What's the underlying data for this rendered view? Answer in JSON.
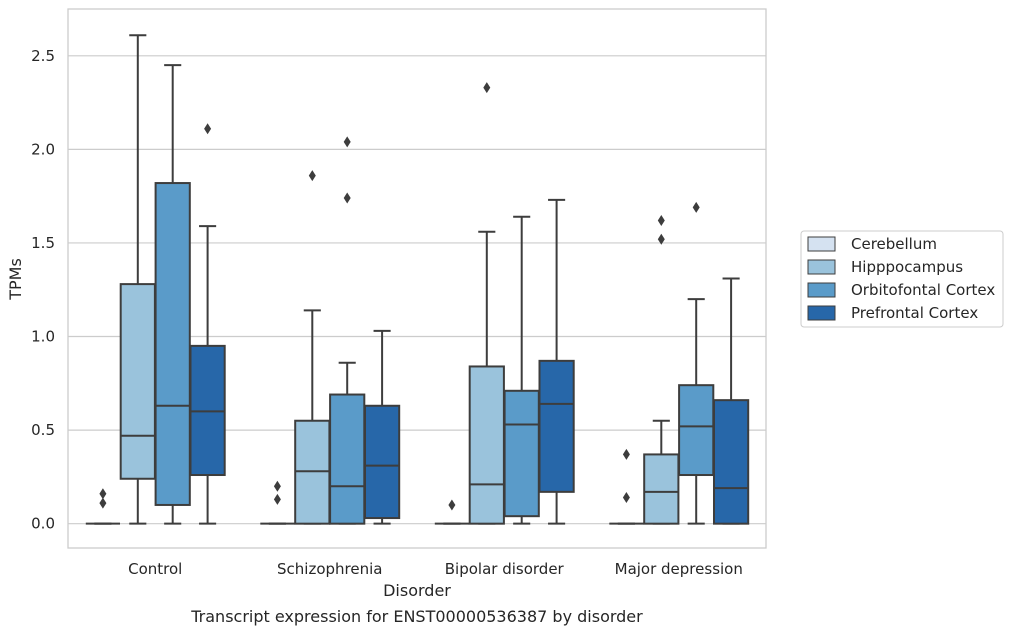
{
  "chart_data": {
    "type": "box",
    "xlabel": "Disorder",
    "ylabel": "TPMs",
    "caption": "Transcript expression for ENST00000536387 by disorder",
    "ylim": [
      -0.13,
      2.75
    ],
    "yticks": [
      0.0,
      0.5,
      1.0,
      1.5,
      2.0,
      2.5
    ],
    "ytick_labels": [
      "0.0",
      "0.5",
      "1.0",
      "1.5",
      "2.0",
      "2.5"
    ],
    "grid": "horizontal",
    "legend_position": "right",
    "categories": [
      "Control",
      "Schizophrenia",
      "Bipolar disorder",
      "Major depression"
    ],
    "series": [
      {
        "name": "Cerebellum",
        "color": "#d5e2f1",
        "boxes": [
          {
            "whislo": 0.0,
            "q1": 0.0,
            "med": 0.0,
            "q3": 0.0,
            "whishi": 0.0,
            "fliers": [
              0.11,
              0.16
            ]
          },
          {
            "whislo": 0.0,
            "q1": 0.0,
            "med": 0.0,
            "q3": 0.0,
            "whishi": 0.0,
            "fliers": [
              0.13,
              0.2
            ]
          },
          {
            "whislo": 0.0,
            "q1": 0.0,
            "med": 0.0,
            "q3": 0.0,
            "whishi": 0.0,
            "fliers": [
              0.1
            ]
          },
          {
            "whislo": 0.0,
            "q1": 0.0,
            "med": 0.0,
            "q3": 0.0,
            "whishi": 0.0,
            "fliers": [
              0.14,
              0.37
            ]
          }
        ]
      },
      {
        "name": "Hipppocampus",
        "color": "#9ac3dc",
        "boxes": [
          {
            "whislo": 0.0,
            "q1": 0.24,
            "med": 0.47,
            "q3": 1.28,
            "whishi": 2.61,
            "fliers": []
          },
          {
            "whislo": 0.0,
            "q1": 0.0,
            "med": 0.28,
            "q3": 0.55,
            "whishi": 1.14,
            "fliers": [
              1.86
            ]
          },
          {
            "whislo": 0.0,
            "q1": 0.0,
            "med": 0.21,
            "q3": 0.84,
            "whishi": 1.56,
            "fliers": [
              2.33
            ]
          },
          {
            "whislo": 0.0,
            "q1": 0.0,
            "med": 0.17,
            "q3": 0.37,
            "whishi": 0.55,
            "fliers": [
              1.52,
              1.62
            ]
          }
        ]
      },
      {
        "name": "Orbitofontal Cortex",
        "color": "#5a9bc9",
        "boxes": [
          {
            "whislo": 0.0,
            "q1": 0.1,
            "med": 0.63,
            "q3": 1.82,
            "whishi": 2.45,
            "fliers": []
          },
          {
            "whislo": 0.0,
            "q1": 0.0,
            "med": 0.2,
            "q3": 0.69,
            "whishi": 0.86,
            "fliers": [
              1.74,
              2.04
            ]
          },
          {
            "whislo": 0.0,
            "q1": 0.04,
            "med": 0.53,
            "q3": 0.71,
            "whishi": 1.64,
            "fliers": []
          },
          {
            "whislo": 0.0,
            "q1": 0.26,
            "med": 0.52,
            "q3": 0.74,
            "whishi": 1.2,
            "fliers": [
              1.69
            ]
          }
        ]
      },
      {
        "name": "Prefrontal Cortex",
        "color": "#2767a9",
        "boxes": [
          {
            "whislo": 0.0,
            "q1": 0.26,
            "med": 0.6,
            "q3": 0.95,
            "whishi": 1.59,
            "fliers": [
              2.11
            ]
          },
          {
            "whislo": 0.0,
            "q1": 0.03,
            "med": 0.31,
            "q3": 0.63,
            "whishi": 1.03,
            "fliers": []
          },
          {
            "whislo": 0.0,
            "q1": 0.17,
            "med": 0.64,
            "q3": 0.87,
            "whishi": 1.73,
            "fliers": []
          },
          {
            "whislo": 0.0,
            "q1": 0.0,
            "med": 0.19,
            "q3": 0.66,
            "whishi": 1.31,
            "fliers": []
          }
        ]
      }
    ]
  }
}
